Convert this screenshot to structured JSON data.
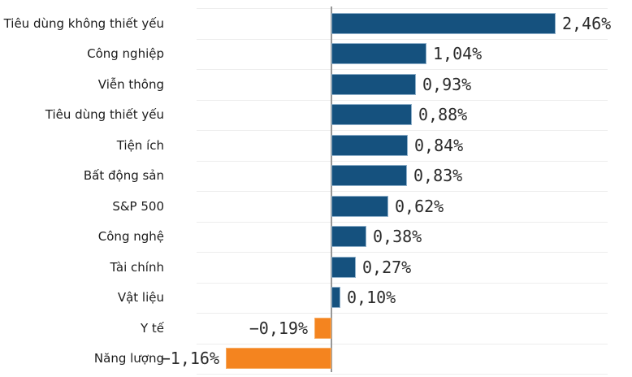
{
  "chart_data": {
    "type": "bar",
    "orientation": "horizontal",
    "categories": [
      "Tiêu dùng không thiết yếu",
      "Công nghiệp",
      "Viễn thông",
      "Tiêu dùng thiết yếu",
      "Tiện ích",
      "Bất động sản",
      "S&P 500",
      "Công nghệ",
      "Tài chính",
      "Vật liệu",
      "Y tế",
      "Năng lượng"
    ],
    "values": [
      2.46,
      1.04,
      0.93,
      0.88,
      0.84,
      0.83,
      0.62,
      0.38,
      0.27,
      0.1,
      -0.19,
      -1.16
    ],
    "value_labels": [
      "2,46%",
      "1,04%",
      "0,93%",
      "0,88%",
      "0,84%",
      "0,83%",
      "0,62%",
      "0,38%",
      "0,27%",
      "0,10%",
      "−0,19%",
      "−1,16%"
    ],
    "unit": "%",
    "decimal_separator": ",",
    "xlim": [
      -1.5,
      3.0
    ],
    "grid": "horizontal row-separator lines, no vertical gridlines except zero axis",
    "legend": "none",
    "value_label_position": "outside bar end",
    "category_label_position": "left, right-aligned",
    "colors": {
      "positive_bar": "#15517E",
      "positive_bar_edge": "#8FB0CA",
      "negative_bar": "#F4841F",
      "negative_bar_edge": "#F7AE66",
      "zero_axis_line": "#979797",
      "gridline": "#EDEDED",
      "category_text": "#1C1C1C",
      "value_text": "#2B2B2B"
    }
  }
}
